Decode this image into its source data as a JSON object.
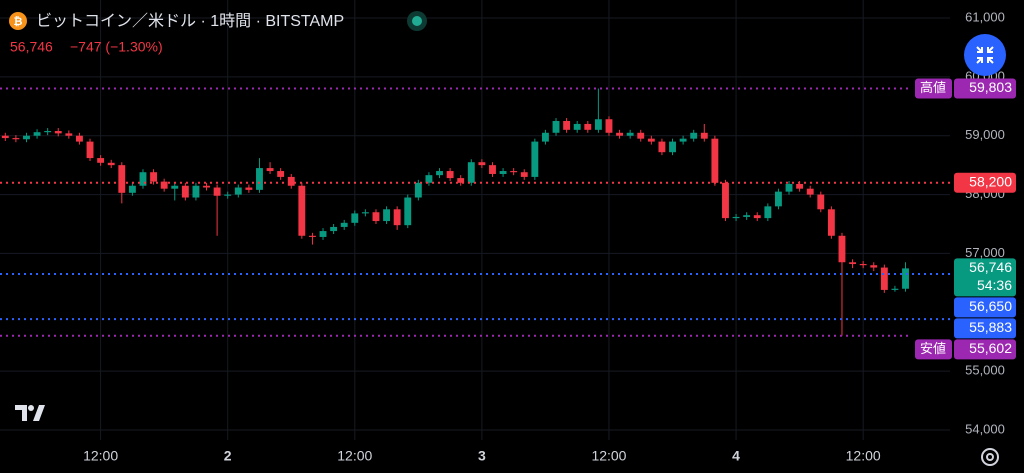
{
  "header": {
    "title": "ビットコイン／米ドル · 1時間 · BITSTAMP",
    "price": "56,746",
    "change": "−747 (−1.30%)"
  },
  "chart_data": {
    "type": "candlestick",
    "x": [
      3,
      4,
      5,
      6,
      7,
      8,
      9,
      10,
      11,
      12,
      13,
      14,
      15,
      16,
      17,
      18,
      19,
      20,
      21,
      22,
      23,
      24,
      25,
      26,
      27,
      28,
      29,
      30,
      31,
      32,
      33,
      34,
      35,
      36,
      37,
      38,
      39,
      40,
      41,
      42,
      43,
      44,
      45,
      46,
      47,
      48,
      49,
      50,
      51,
      52,
      53,
      54,
      55,
      56,
      57,
      58,
      59,
      60,
      61,
      62,
      63,
      64,
      65,
      66,
      67,
      68,
      69,
      70,
      71,
      72,
      73,
      74,
      75,
      76,
      77,
      78,
      79,
      80,
      81,
      82,
      83,
      84,
      85,
      86,
      87,
      88
    ],
    "open": [
      59000,
      58960,
      58940,
      59000,
      59060,
      59080,
      59040,
      59000,
      58900,
      58620,
      58540,
      58500,
      58030,
      58150,
      58380,
      58220,
      58100,
      58150,
      57950,
      58150,
      58120,
      57980,
      58000,
      58120,
      58080,
      58450,
      58400,
      58300,
      58150,
      57300,
      57280,
      57380,
      57450,
      57520,
      57680,
      57700,
      57550,
      57750,
      57480,
      57950,
      58200,
      58330,
      58400,
      58280,
      58200,
      58550,
      58500,
      58350,
      58400,
      58380,
      58300,
      58900,
      59050,
      59250,
      59100,
      59200,
      59100,
      59280,
      59050,
      59000,
      59050,
      58950,
      58900,
      58720,
      58900,
      58950,
      59050,
      58950,
      58200,
      57600,
      57620,
      57650,
      57600,
      57800,
      58050,
      58180,
      58100,
      58000,
      57750,
      57300,
      56850,
      56820,
      56800,
      56760,
      56380,
      56400
    ],
    "high": [
      59050,
      59010,
      59050,
      59110,
      59130,
      59130,
      59090,
      59050,
      58950,
      58670,
      58590,
      58550,
      58200,
      58430,
      58430,
      58270,
      58200,
      58200,
      58200,
      58200,
      58170,
      58050,
      58170,
      58170,
      58620,
      58550,
      58450,
      58350,
      58200,
      57350,
      57430,
      57500,
      57570,
      57730,
      57750,
      57750,
      57800,
      57800,
      58000,
      58250,
      58380,
      58450,
      58450,
      58330,
      58600,
      58600,
      58550,
      58450,
      58450,
      58430,
      58950,
      59100,
      59300,
      59300,
      59250,
      59250,
      59803,
      59330,
      59100,
      59100,
      59100,
      59000,
      58950,
      58950,
      59000,
      59100,
      59200,
      59000,
      58250,
      57670,
      57700,
      57700,
      57850,
      58100,
      58230,
      58230,
      58150,
      58050,
      57800,
      57350,
      56900,
      56870,
      56850,
      56810,
      56450,
      56850
    ],
    "low": [
      58910,
      58890,
      58890,
      58950,
      59010,
      58990,
      58950,
      58850,
      58570,
      58490,
      58450,
      57850,
      57980,
      58100,
      58170,
      58050,
      57900,
      57900,
      57900,
      58070,
      57300,
      57930,
      57950,
      58030,
      58030,
      58350,
      58250,
      58100,
      57250,
      57150,
      57230,
      57330,
      57400,
      57470,
      57630,
      57500,
      57500,
      57400,
      57430,
      57900,
      58150,
      58280,
      58230,
      58150,
      58150,
      58450,
      58300,
      58300,
      58330,
      58250,
      58250,
      58850,
      59000,
      59050,
      59050,
      59050,
      59050,
      59000,
      58950,
      58950,
      58900,
      58850,
      58670,
      58670,
      58850,
      58900,
      58900,
      58150,
      57550,
      57550,
      57570,
      57550,
      57550,
      57750,
      58000,
      58050,
      57950,
      57700,
      57250,
      55602,
      56750,
      56750,
      56700,
      56330,
      56350,
      56350
    ],
    "close": [
      58960,
      58940,
      59000,
      59060,
      59080,
      59040,
      59000,
      58900,
      58620,
      58540,
      58500,
      58030,
      58150,
      58380,
      58220,
      58100,
      58150,
      57950,
      58150,
      58120,
      57980,
      58000,
      58120,
      58080,
      58450,
      58400,
      58300,
      58150,
      57300,
      57280,
      57380,
      57450,
      57520,
      57680,
      57700,
      57550,
      57750,
      57480,
      57950,
      58200,
      58330,
      58400,
      58280,
      58200,
      58550,
      58500,
      58350,
      58400,
      58380,
      58300,
      58900,
      59050,
      59250,
      59100,
      59200,
      59100,
      59280,
      59050,
      59000,
      59050,
      58950,
      58900,
      58720,
      58900,
      58950,
      59050,
      58950,
      58200,
      57600,
      57620,
      57650,
      57600,
      57800,
      58050,
      58180,
      58100,
      58000,
      57750,
      57300,
      56850,
      56820,
      56800,
      56760,
      56380,
      56400,
      56746
    ],
    "up_color": "#089981",
    "down_color": "#f23645",
    "xlim": [
      2.5,
      92.2
    ],
    "xticks": [
      {
        "value": 12,
        "label": "12:00"
      },
      {
        "value": 24,
        "label": "2"
      },
      {
        "value": 36,
        "label": "12:00"
      },
      {
        "value": 48,
        "label": "3"
      },
      {
        "value": 60,
        "label": "12:00"
      },
      {
        "value": 72,
        "label": "4"
      },
      {
        "value": 84,
        "label": "12:00"
      }
    ],
    "ylim": [
      53830,
      61306
    ],
    "yticks": [
      {
        "value": 54000,
        "label": "54,000"
      },
      {
        "value": 55000,
        "label": "55,000"
      },
      {
        "value": 57000,
        "label": "57,000"
      },
      {
        "value": 58000,
        "label": "58,000"
      },
      {
        "value": 59000,
        "label": "59,000"
      },
      {
        "value": 60000,
        "label": "60,000"
      },
      {
        "value": 61000,
        "label": "61,000"
      }
    ],
    "grid": true,
    "price_lines": [
      {
        "value": 59803,
        "label": "59,803",
        "tag": "高値",
        "color": "#9c27b0",
        "dotted": true
      },
      {
        "value": 58200,
        "label": "58,200",
        "color": "#f23645",
        "dotted": true
      },
      {
        "value": 56746,
        "label": "56,746",
        "countdown": "54:36",
        "color": "#089981",
        "dotted": false
      },
      {
        "value": 56650,
        "label": "56,650",
        "color": "#2962ff",
        "dotted": true
      },
      {
        "value": 55883,
        "label": "55,883",
        "color": "#2962ff",
        "dotted": true
      },
      {
        "value": 55602,
        "label": "55,602",
        "tag": "安値",
        "color": "#9c27b0",
        "dotted": true
      }
    ]
  }
}
